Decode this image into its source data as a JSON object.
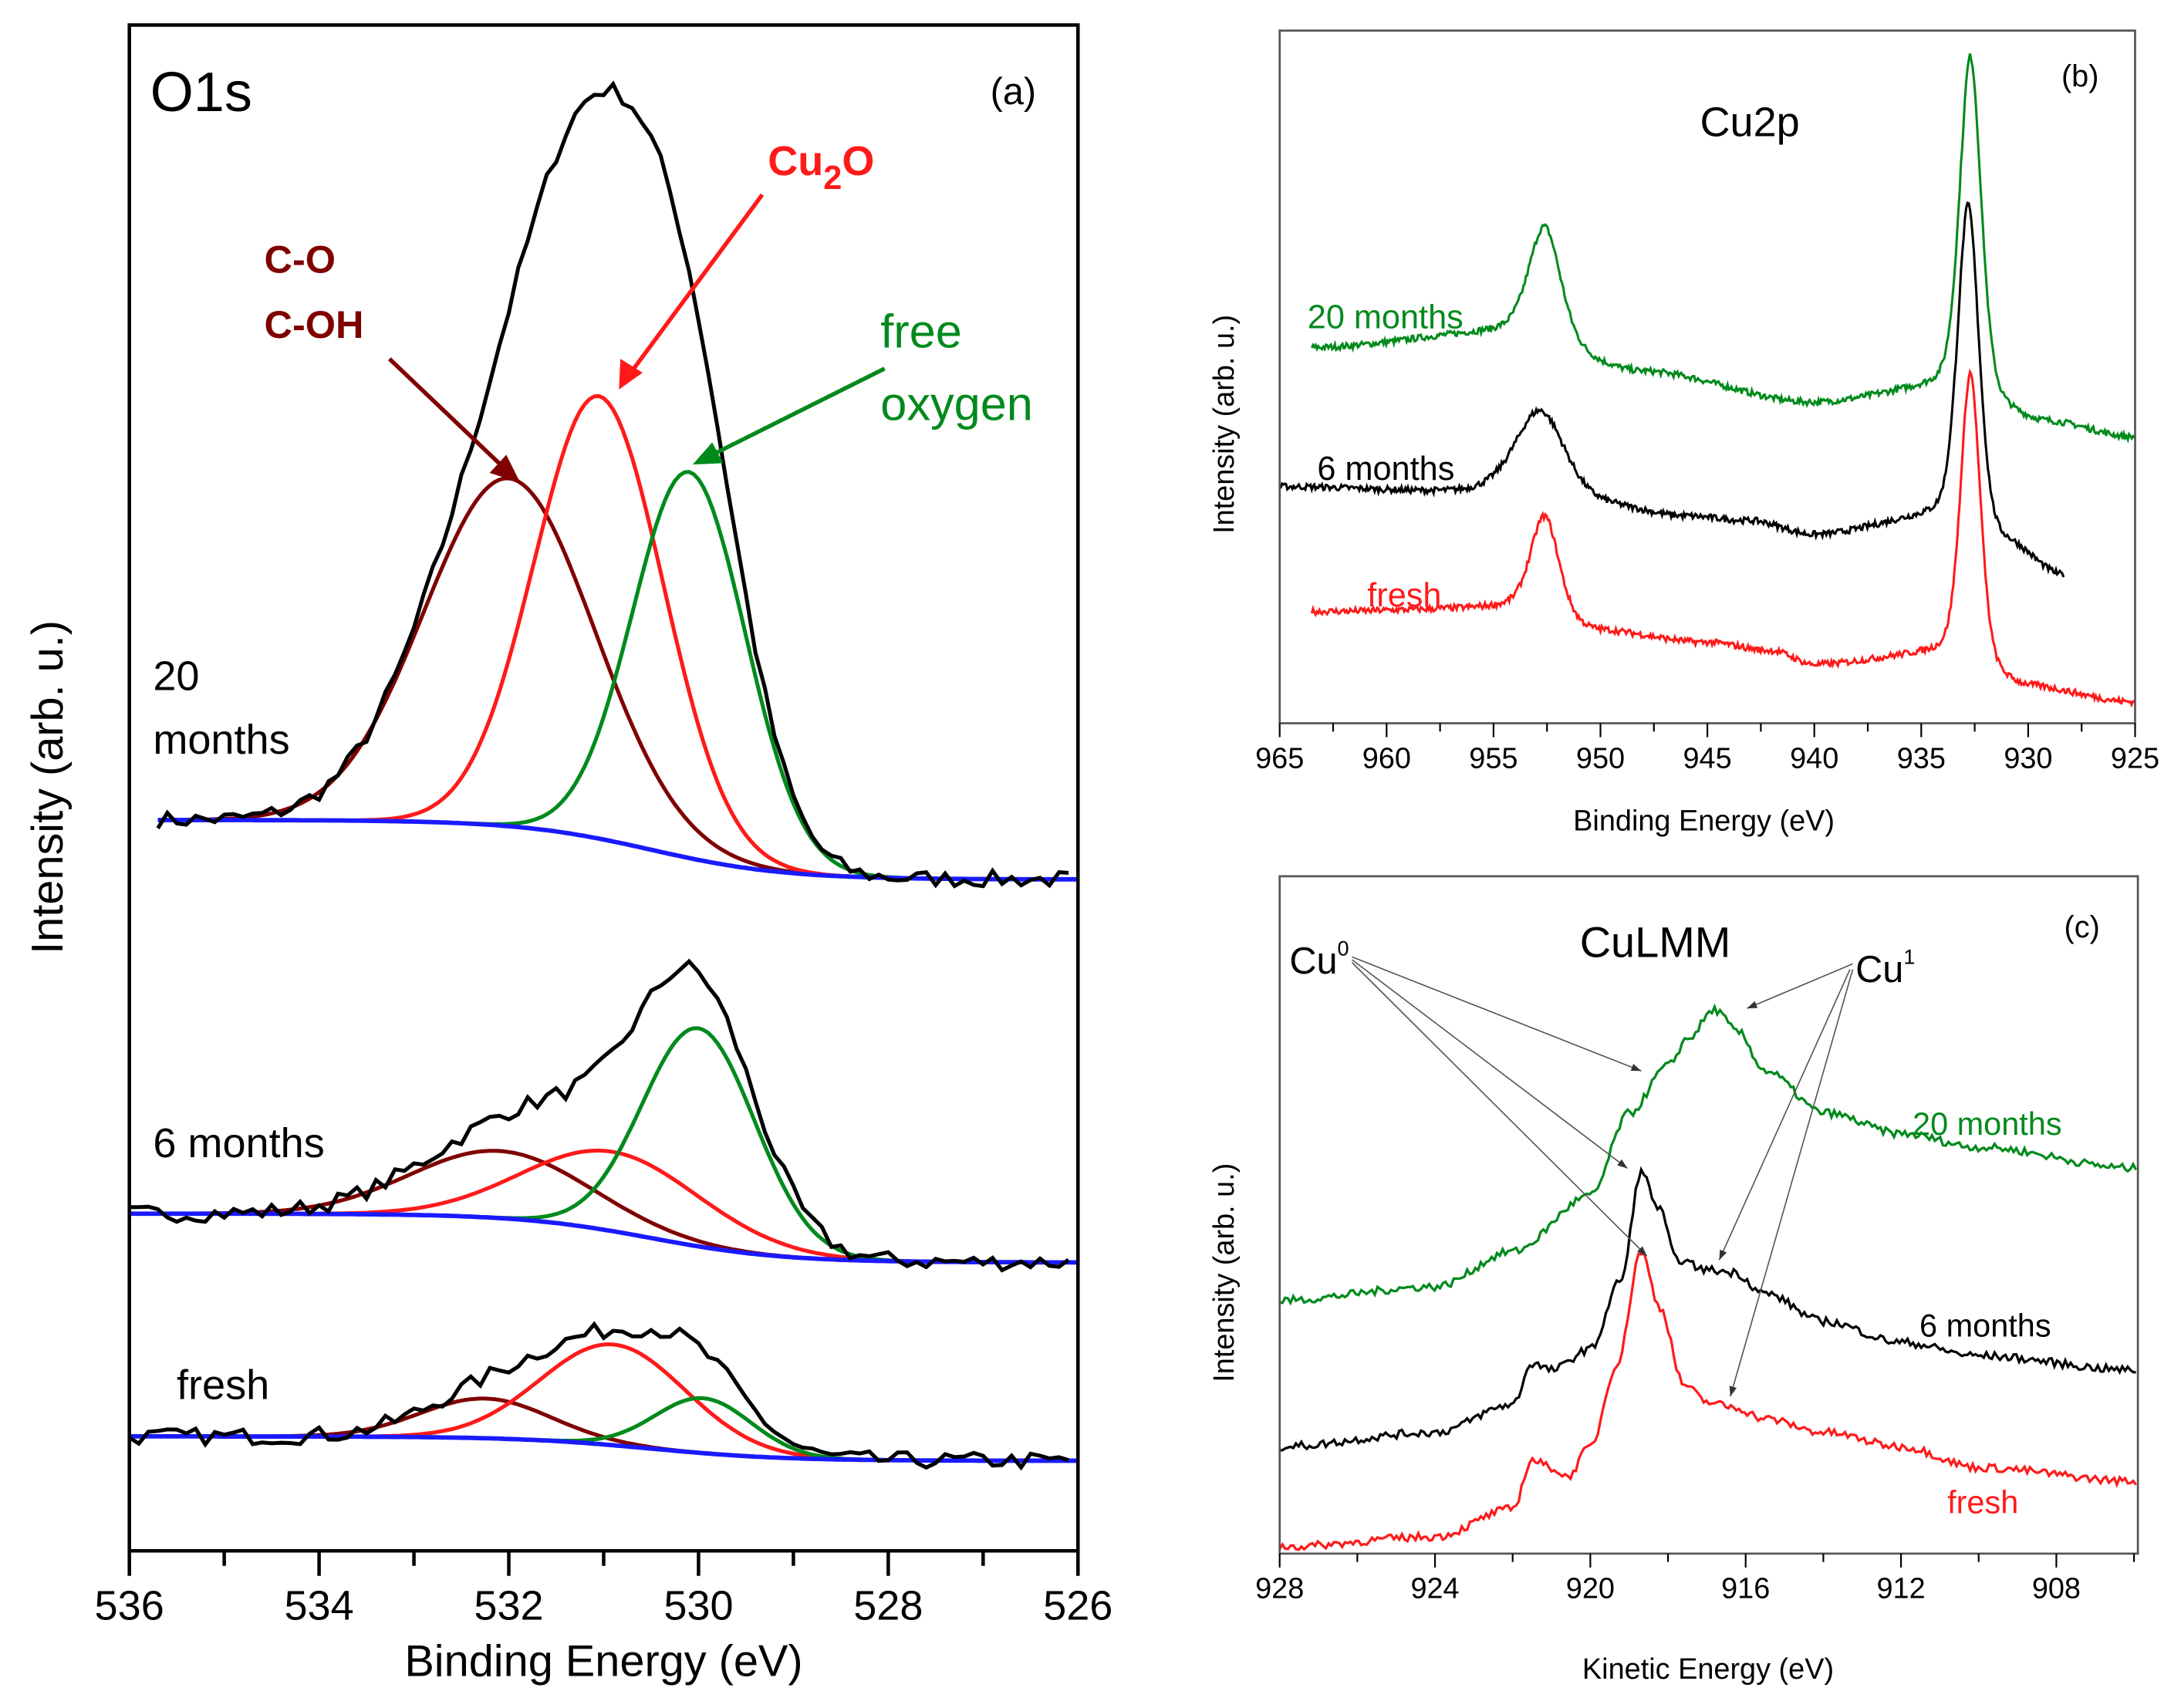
{
  "colors": {
    "black": "#000000",
    "red": "#ff1a1a",
    "darkred": "#800000",
    "green": "#008a1c",
    "blue": "#1a1aff",
    "frame_gray": "#555555"
  },
  "chart_data": [
    {
      "id": "a",
      "type": "line",
      "panel_label": "(a)",
      "title": "O1s",
      "xlabel": "Binding Energy (eV)",
      "ylabel": "Intensity (arb. u.)",
      "xlim": [
        536,
        526
      ],
      "ylim": [
        0,
        100
      ],
      "xticks": [
        "536",
        "534",
        "532",
        "530",
        "528",
        "526"
      ],
      "xtick_values": [
        536,
        534,
        532,
        530,
        528,
        526
      ],
      "model": "gaussian components on sigmoid background; envelope = sum",
      "annotations": {
        "cu2o_base": "Cu",
        "cu2o_sub": "2",
        "cu2o_tail": "O",
        "co": "C-O",
        "coh": "C-OH",
        "free": "free",
        "oxygen": "oxygen"
      },
      "samples": [
        {
          "name": "20 months",
          "label_line1": "20",
          "label_line2": "months",
          "xstart": 535.7,
          "bg_left": 47.9,
          "bg_right": 44.0,
          "bg_center": 530.5,
          "components": [
            {
              "name": "C-O / C-OH",
              "center": 532.0,
              "height": 22.8,
              "fwhm": 2.1,
              "color": "darkred"
            },
            {
              "name": "Cu2O",
              "center": 531.05,
              "height": 29.0,
              "fwhm": 1.6,
              "color": "red"
            },
            {
              "name": "free oxygen",
              "center": 530.1,
              "height": 25.3,
              "fwhm": 1.4,
              "color": "green"
            }
          ]
        },
        {
          "name": "6 months",
          "label_line1": "6 months",
          "label_line2": "",
          "xstart": 536.0,
          "bg_left": 22.1,
          "bg_right": 18.9,
          "bg_center": 530.5,
          "components": [
            {
              "name": "C-O / C-OH",
              "center": 532.1,
              "height": 4.4,
              "fwhm": 2.2,
              "color": "darkred"
            },
            {
              "name": "Cu2O",
              "center": 530.9,
              "height": 5.2,
              "fwhm": 2.2,
              "color": "red"
            },
            {
              "name": "free oxygen",
              "center": 530.0,
              "height": 14.3,
              "fwhm": 1.4,
              "color": "green"
            }
          ]
        },
        {
          "name": "fresh",
          "label_line1": "fresh",
          "label_line2": "",
          "xstart": 536.0,
          "bg_left": 7.5,
          "bg_right": 5.9,
          "bg_center": 530.5,
          "components": [
            {
              "name": "C-O / C-OH",
              "center": 532.25,
              "height": 2.6,
              "fwhm": 1.6,
              "color": "darkred"
            },
            {
              "name": "Cu2O",
              "center": 530.9,
              "height": 6.6,
              "fwhm": 1.8,
              "color": "red"
            },
            {
              "name": "free oxygen",
              "center": 529.95,
              "height": 3.6,
              "fwhm": 1.2,
              "color": "green"
            }
          ]
        }
      ]
    },
    {
      "id": "b",
      "type": "line",
      "panel_label": "(b)",
      "title": "Cu2p",
      "xlabel": "Binding Energy (eV)",
      "ylabel": "Intensity (arb. u.)",
      "xlim": [
        965,
        925
      ],
      "ylim": [
        0,
        100
      ],
      "xticks": [
        "965",
        "960",
        "955",
        "950",
        "945",
        "940",
        "935",
        "930",
        "925"
      ],
      "xtick_values": [
        965,
        960,
        955,
        950,
        945,
        940,
        935,
        930,
        925
      ],
      "series": [
        {
          "name": "20 months",
          "color": "green",
          "baseline": [
            [
              963.5,
              54.2
            ],
            [
              955,
              56.2
            ],
            [
              948,
              50.6
            ],
            [
              940,
              46.2
            ],
            [
              935,
              47.8
            ],
            [
              929,
              43.2
            ],
            [
              925,
              41.2
            ]
          ],
          "peaks": [
            {
              "center": 952.6,
              "height": 17,
              "hwhm": 0.9
            },
            {
              "center": 932.7,
              "height": 50,
              "hwhm": 0.6
            }
          ]
        },
        {
          "name": "6 months",
          "color": "black",
          "baseline": [
            [
              965,
              34.1
            ],
            [
              955.5,
              33.1
            ],
            [
              950,
              31.1
            ],
            [
              946,
              29.7
            ],
            [
              943,
              29.1
            ],
            [
              940,
              27.1
            ],
            [
              935,
              29.1
            ],
            [
              931,
              25.1
            ],
            [
              928.3,
              21.1
            ]
          ],
          "peaks": [
            {
              "center": 952.8,
              "height": 13,
              "hwhm": 1.4
            },
            {
              "center": 932.8,
              "height": 48,
              "hwhm": 0.6
            }
          ]
        },
        {
          "name": "fresh",
          "color": "red",
          "baseline": [
            [
              963.5,
              16.1
            ],
            [
              955,
              16.5
            ],
            [
              950,
              13.1
            ],
            [
              945,
              11.6
            ],
            [
              942,
              10.4
            ],
            [
              940,
              8.4
            ],
            [
              935,
              9.6
            ],
            [
              930,
              5.0
            ],
            [
              925,
              3.0
            ]
          ],
          "peaks": [
            {
              "center": 952.6,
              "height": 15,
              "hwhm": 0.8
            },
            {
              "center": 932.7,
              "height": 43,
              "hwhm": 0.55
            }
          ]
        }
      ]
    },
    {
      "id": "c",
      "type": "line",
      "panel_label": "(c)",
      "title": "CuLMM",
      "xlabel": "Kinetic Energy (eV)",
      "ylabel": "Intensity (arb. u.)",
      "xlim": [
        928,
        905.9
      ],
      "ylim": [
        0,
        100
      ],
      "xticks": [
        "928",
        "924",
        "920",
        "916",
        "912",
        "908"
      ],
      "xtick_values": [
        928,
        924,
        920,
        916,
        912,
        908
      ],
      "annotations": {
        "cu0_base": "Cu",
        "cu0_sup": "0",
        "cu1_base": "Cu",
        "cu1_sup": "1"
      },
      "series": [
        {
          "name": "20 months",
          "color": "green",
          "points": [
            [
              928,
              37.4
            ],
            [
              924,
              39.4
            ],
            [
              922,
              44.6
            ],
            [
              920,
              52.8
            ],
            [
              919,
              65
            ],
            [
              918,
              72
            ],
            [
              917.5,
              76
            ],
            [
              916.8,
              80.3
            ],
            [
              916.2,
              77
            ],
            [
              915.5,
              71.3
            ],
            [
              914,
              65.1
            ],
            [
              912,
              62
            ],
            [
              910,
              60
            ],
            [
              906,
              56.9
            ]
          ]
        },
        {
          "name": "6 months",
          "color": "black",
          "points": [
            [
              928,
              15.8
            ],
            [
              924,
              17.9
            ],
            [
              922,
              22
            ],
            [
              921.5,
              28.1
            ],
            [
              921,
              27.1
            ],
            [
              920,
              30.2
            ],
            [
              919.2,
              40.5
            ],
            [
              918.7,
              56.3
            ],
            [
              918.2,
              50.7
            ],
            [
              917.8,
              43.5
            ],
            [
              917,
              41.9
            ],
            [
              916.3,
              41.5
            ],
            [
              915.5,
              38.4
            ],
            [
              914,
              34.3
            ],
            [
              912,
              31.2
            ],
            [
              910,
              29.2
            ],
            [
              906,
              27.1
            ]
          ]
        },
        {
          "name": "fresh",
          "color": "red",
          "points": [
            [
              928,
              1
            ],
            [
              924,
              2.5
            ],
            [
              922,
              6.6
            ],
            [
              921.5,
              13.8
            ],
            [
              921,
              12.7
            ],
            [
              920.6,
              11.3
            ],
            [
              920,
              15.8
            ],
            [
              919.3,
              28.1
            ],
            [
              918.7,
              44.6
            ],
            [
              918.2,
              36.3
            ],
            [
              917.6,
              25
            ],
            [
              917,
              22.4
            ],
            [
              916.3,
              21.6
            ],
            [
              915.5,
              19.9
            ],
            [
              914,
              17.9
            ],
            [
              912,
              15.8
            ],
            [
              910,
              12.7
            ],
            [
              906,
              10.7
            ]
          ]
        }
      ]
    }
  ]
}
